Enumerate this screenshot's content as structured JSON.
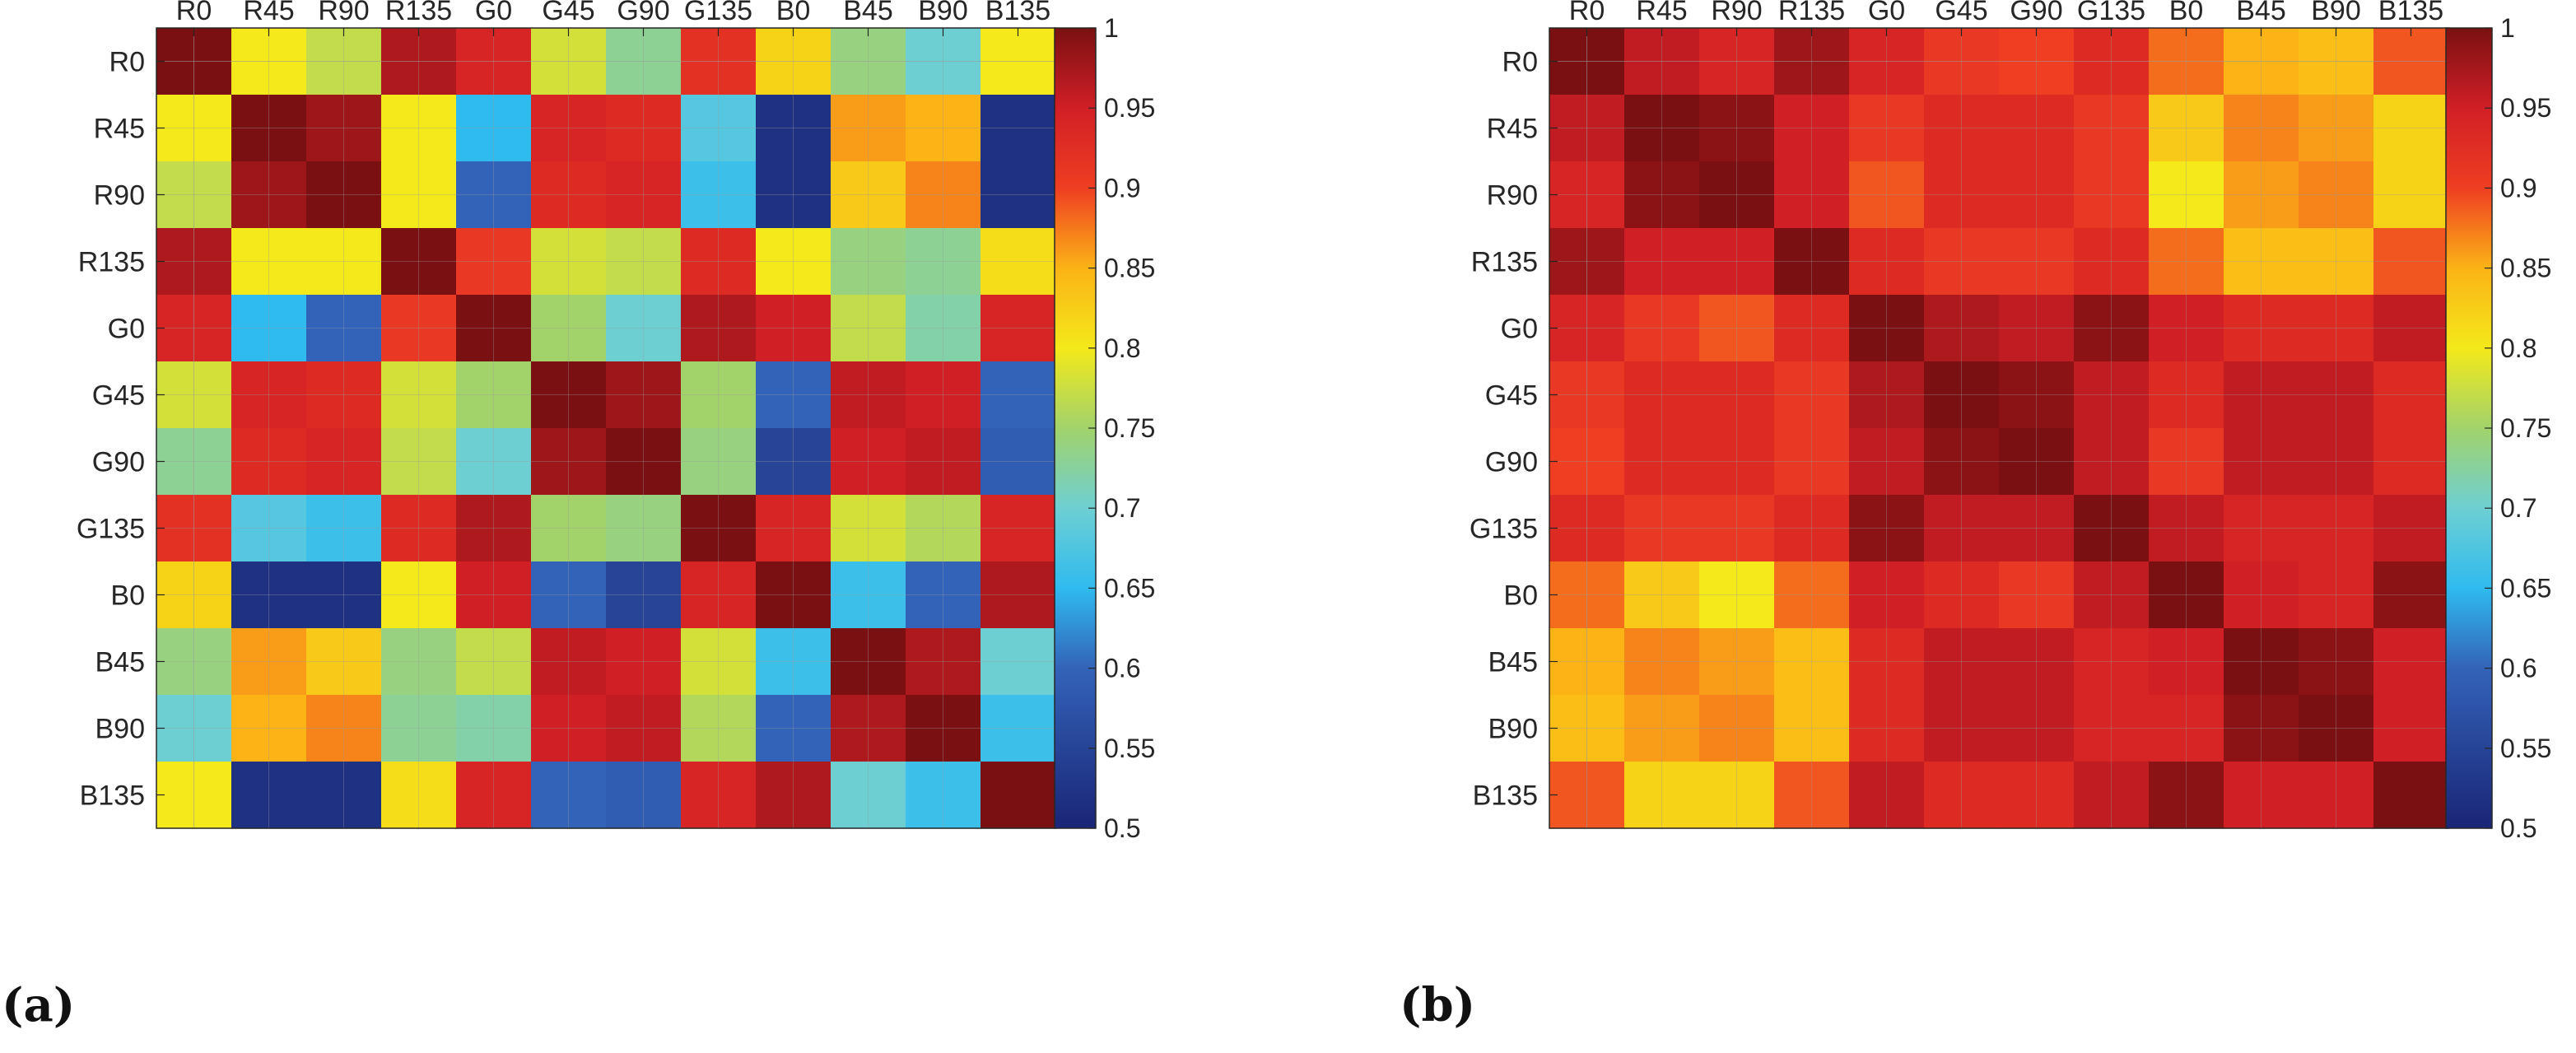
{
  "panel_labels": [
    "(a)",
    "(b)"
  ],
  "chart_data": [
    {
      "type": "heatmap",
      "title": "",
      "xlabel": "",
      "ylabel": "",
      "x_labels": [
        "R0",
        "R45",
        "R90",
        "R135",
        "G0",
        "G45",
        "G90",
        "G135",
        "B0",
        "B45",
        "B90",
        "B135"
      ],
      "y_labels": [
        "R0",
        "R45",
        "R90",
        "R135",
        "G0",
        "G45",
        "G90",
        "G135",
        "B0",
        "B45",
        "B90",
        "B135"
      ],
      "values": [
        [
          1.0,
          0.8,
          0.77,
          0.97,
          0.94,
          0.78,
          0.73,
          0.92,
          0.82,
          0.74,
          0.7,
          0.8
        ],
        [
          0.8,
          1.0,
          0.98,
          0.8,
          0.65,
          0.94,
          0.93,
          0.68,
          0.52,
          0.86,
          0.85,
          0.52
        ],
        [
          0.77,
          0.98,
          1.0,
          0.8,
          0.6,
          0.93,
          0.94,
          0.66,
          0.52,
          0.83,
          0.87,
          0.52
        ],
        [
          0.97,
          0.8,
          0.8,
          1.0,
          0.91,
          0.78,
          0.77,
          0.93,
          0.8,
          0.74,
          0.73,
          0.81
        ],
        [
          0.94,
          0.65,
          0.6,
          0.91,
          1.0,
          0.75,
          0.7,
          0.97,
          0.95,
          0.77,
          0.72,
          0.94
        ],
        [
          0.78,
          0.94,
          0.93,
          0.78,
          0.75,
          1.0,
          0.98,
          0.75,
          0.6,
          0.96,
          0.95,
          0.6
        ],
        [
          0.73,
          0.93,
          0.94,
          0.77,
          0.7,
          0.98,
          1.0,
          0.74,
          0.55,
          0.95,
          0.96,
          0.59
        ],
        [
          0.92,
          0.68,
          0.66,
          0.93,
          0.97,
          0.75,
          0.74,
          1.0,
          0.94,
          0.78,
          0.76,
          0.94
        ],
        [
          0.82,
          0.52,
          0.52,
          0.8,
          0.95,
          0.6,
          0.55,
          0.94,
          1.0,
          0.66,
          0.6,
          0.97
        ],
        [
          0.74,
          0.86,
          0.83,
          0.74,
          0.77,
          0.96,
          0.95,
          0.78,
          0.66,
          1.0,
          0.97,
          0.7
        ],
        [
          0.7,
          0.85,
          0.87,
          0.73,
          0.72,
          0.95,
          0.96,
          0.76,
          0.6,
          0.97,
          1.0,
          0.66
        ],
        [
          0.8,
          0.52,
          0.52,
          0.81,
          0.94,
          0.6,
          0.59,
          0.94,
          0.97,
          0.7,
          0.66,
          1.0
        ]
      ],
      "colorbar": {
        "min": 0.5,
        "max": 1,
        "ticks": [
          0.5,
          0.55,
          0.6,
          0.65,
          0.7,
          0.75,
          0.8,
          0.85,
          0.9,
          0.95,
          1
        ],
        "tick_labels": [
          "0.5",
          "0.55",
          "0.6",
          "0.65",
          "0.7",
          "0.75",
          "0.8",
          "0.85",
          "0.9",
          "0.95",
          "1"
        ],
        "colormap": "jet"
      },
      "grid": true
    },
    {
      "type": "heatmap",
      "title": "",
      "xlabel": "",
      "ylabel": "",
      "x_labels": [
        "R0",
        "R45",
        "R90",
        "R135",
        "G0",
        "G45",
        "G90",
        "G135",
        "B0",
        "B45",
        "B90",
        "B135"
      ],
      "y_labels": [
        "R0",
        "R45",
        "R90",
        "R135",
        "G0",
        "G45",
        "G90",
        "G135",
        "B0",
        "B45",
        "B90",
        "B135"
      ],
      "values": [
        [
          1.0,
          0.96,
          0.94,
          0.98,
          0.94,
          0.91,
          0.9,
          0.93,
          0.88,
          0.85,
          0.84,
          0.89
        ],
        [
          0.96,
          1.0,
          0.99,
          0.95,
          0.91,
          0.93,
          0.93,
          0.91,
          0.83,
          0.87,
          0.86,
          0.82
        ],
        [
          0.94,
          0.99,
          1.0,
          0.95,
          0.89,
          0.93,
          0.93,
          0.91,
          0.8,
          0.86,
          0.87,
          0.82
        ],
        [
          0.98,
          0.95,
          0.95,
          1.0,
          0.93,
          0.91,
          0.91,
          0.93,
          0.88,
          0.84,
          0.84,
          0.89
        ],
        [
          0.94,
          0.91,
          0.89,
          0.93,
          1.0,
          0.97,
          0.96,
          0.99,
          0.95,
          0.93,
          0.93,
          0.96
        ],
        [
          0.91,
          0.93,
          0.93,
          0.91,
          0.97,
          1.0,
          0.99,
          0.96,
          0.93,
          0.96,
          0.96,
          0.93
        ],
        [
          0.9,
          0.93,
          0.93,
          0.91,
          0.96,
          0.99,
          1.0,
          0.96,
          0.91,
          0.96,
          0.96,
          0.93
        ],
        [
          0.93,
          0.91,
          0.91,
          0.93,
          0.99,
          0.96,
          0.96,
          1.0,
          0.96,
          0.94,
          0.94,
          0.96
        ],
        [
          0.88,
          0.83,
          0.8,
          0.88,
          0.95,
          0.93,
          0.91,
          0.96,
          1.0,
          0.95,
          0.94,
          0.99
        ],
        [
          0.85,
          0.87,
          0.86,
          0.84,
          0.93,
          0.96,
          0.96,
          0.94,
          0.95,
          1.0,
          0.99,
          0.95
        ],
        [
          0.84,
          0.86,
          0.87,
          0.84,
          0.93,
          0.96,
          0.96,
          0.94,
          0.94,
          0.99,
          1.0,
          0.95
        ],
        [
          0.89,
          0.82,
          0.82,
          0.89,
          0.96,
          0.93,
          0.93,
          0.96,
          0.99,
          0.95,
          0.95,
          1.0
        ]
      ],
      "colorbar": {
        "min": 0.5,
        "max": 1,
        "ticks": [
          0.5,
          0.55,
          0.6,
          0.65,
          0.7,
          0.75,
          0.8,
          0.85,
          0.9,
          0.95,
          1
        ],
        "tick_labels": [
          "0.5",
          "0.55",
          "0.6",
          "0.65",
          "0.7",
          "0.75",
          "0.8",
          "0.85",
          "0.9",
          "0.95",
          "1"
        ],
        "colormap": "jet"
      },
      "grid": true
    }
  ]
}
